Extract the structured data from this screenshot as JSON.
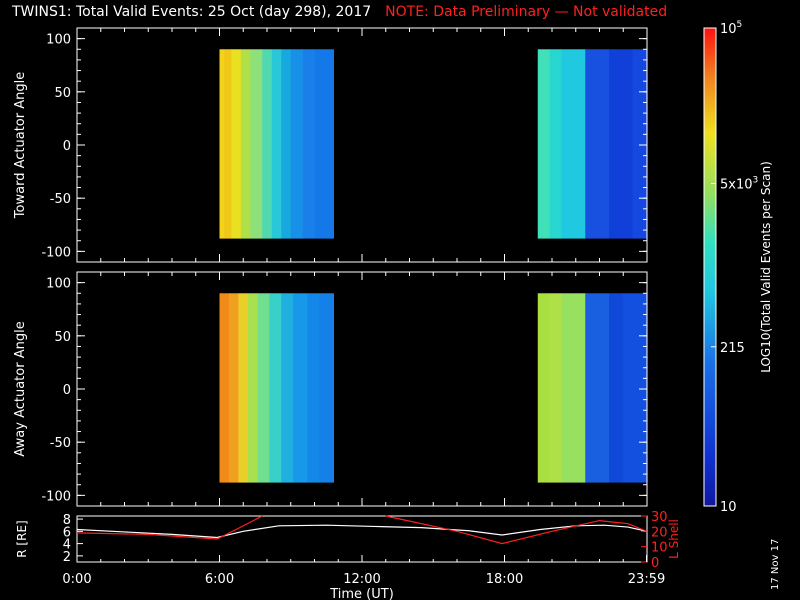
{
  "title": "TWINS1: Total Valid Events: 25 Oct (day 298), 2017",
  "note": "NOTE: Data Preliminary — Not validated",
  "date_stamp": "17 Nov 17",
  "colors": {
    "note": "#ff2020",
    "lshell": "#ff2020",
    "r_line": "#ffffff",
    "frame": "#ffffff"
  },
  "chart_data": [
    {
      "type": "heatmap",
      "ylabel": "Toward Actuator Angle",
      "xlim": [
        0,
        24
      ],
      "ylim": [
        -110,
        110
      ],
      "yticks": [
        100,
        50,
        0,
        -50,
        -100
      ],
      "angle_range": [
        -88,
        90
      ],
      "data_intervals": [
        {
          "start": 6.0,
          "end": 10.8,
          "columns": [
            {
              "t": 6.0,
              "c": "#f5d21a"
            },
            {
              "t": 6.2,
              "c": "#f0c818"
            },
            {
              "t": 6.5,
              "c": "#e8e020"
            },
            {
              "t": 6.9,
              "c": "#b0e048"
            },
            {
              "t": 7.3,
              "c": "#8ee07a"
            },
            {
              "t": 7.8,
              "c": "#50d8b0"
            },
            {
              "t": 8.2,
              "c": "#28c8d8"
            },
            {
              "t": 8.6,
              "c": "#18a8e0"
            },
            {
              "t": 9.0,
              "c": "#1890e8"
            },
            {
              "t": 9.5,
              "c": "#1880e8"
            },
            {
              "t": 10.0,
              "c": "#1478e8"
            }
          ]
        },
        {
          "start": 19.4,
          "end": 24.0,
          "columns": [
            {
              "t": 19.4,
              "c": "#40e0b8"
            },
            {
              "t": 19.9,
              "c": "#28d8d0"
            },
            {
              "t": 20.4,
              "c": "#20c8e0"
            },
            {
              "t": 21.4,
              "c": "#1850e0"
            },
            {
              "t": 22.4,
              "c": "#1040d8"
            },
            {
              "t": 23.4,
              "c": "#1448e0"
            }
          ]
        }
      ]
    },
    {
      "type": "heatmap",
      "ylabel": "Away Actuator Angle",
      "xlim": [
        0,
        24
      ],
      "ylim": [
        -110,
        110
      ],
      "yticks": [
        100,
        50,
        0,
        -50,
        -100
      ],
      "angle_range": [
        -88,
        90
      ],
      "data_intervals": [
        {
          "start": 6.0,
          "end": 10.8,
          "columns": [
            {
              "t": 6.0,
              "c": "#f08a18"
            },
            {
              "t": 6.4,
              "c": "#f0a020"
            },
            {
              "t": 6.8,
              "c": "#e8d028"
            },
            {
              "t": 7.2,
              "c": "#a8e050"
            },
            {
              "t": 7.6,
              "c": "#70e090"
            },
            {
              "t": 8.1,
              "c": "#38d0c8"
            },
            {
              "t": 8.6,
              "c": "#20b0e0"
            },
            {
              "t": 9.1,
              "c": "#1898e8"
            },
            {
              "t": 9.7,
              "c": "#1488e8"
            },
            {
              "t": 10.2,
              "c": "#1480e8"
            }
          ]
        },
        {
          "start": 19.4,
          "end": 24.0,
          "columns": [
            {
              "t": 19.4,
              "c": "#a8e040"
            },
            {
              "t": 19.9,
              "c": "#b0e048"
            },
            {
              "t": 20.4,
              "c": "#98e060"
            },
            {
              "t": 21.4,
              "c": "#1860e0"
            },
            {
              "t": 22.4,
              "c": "#1048d8"
            },
            {
              "t": 23.0,
              "c": "#1450e0"
            }
          ]
        }
      ]
    },
    {
      "type": "line",
      "ylabel": "R [RE]",
      "y2label": "L Shell",
      "xlabel": "Time (UT)",
      "xlim": [
        0,
        24
      ],
      "ylim": [
        1,
        8.5
      ],
      "y2lim": [
        0,
        30
      ],
      "yticks": [
        8,
        6,
        4,
        2
      ],
      "y2ticks": [
        30,
        20,
        10,
        0
      ],
      "xticks": [
        0,
        6,
        12,
        18,
        23.98
      ],
      "xticklabels": [
        "0:00",
        "6:00",
        "12:00",
        "18:00",
        "23:59"
      ],
      "series": [
        {
          "axis": "left",
          "x": [
            0,
            2,
            4,
            5.9,
            7,
            8.5,
            10.5,
            12.5,
            14.5,
            16.5,
            17.9,
            19.5,
            21,
            22.2,
            23.2,
            24
          ],
          "y": [
            6.3,
            5.9,
            5.5,
            5.0,
            6.0,
            6.9,
            7.0,
            6.8,
            6.6,
            6.1,
            5.4,
            6.3,
            6.9,
            7.0,
            6.7,
            6.0
          ]
        },
        {
          "axis": "right",
          "segments": [
            {
              "x": [
                0,
                3,
                5.9,
                6.8,
                7.8
              ],
              "y": [
                19,
                18,
                15,
                22,
                30
              ]
            },
            {
              "x": [
                13,
                16,
                17.9,
                20,
                22,
                23.2,
                24
              ],
              "y": [
                30,
                20,
                12,
                20,
                27,
                25,
                20
              ]
            }
          ]
        }
      ]
    }
  ],
  "colorbar": {
    "ticks": [
      "10",
      "215",
      "5x10",
      "10"
    ],
    "tick_exponents": [
      "",
      "",
      "3",
      "5"
    ],
    "tick_positions": [
      10,
      215,
      5000,
      100000
    ],
    "range": [
      10,
      100000
    ],
    "label": "LOG10(Total Valid Events per Scan)"
  }
}
